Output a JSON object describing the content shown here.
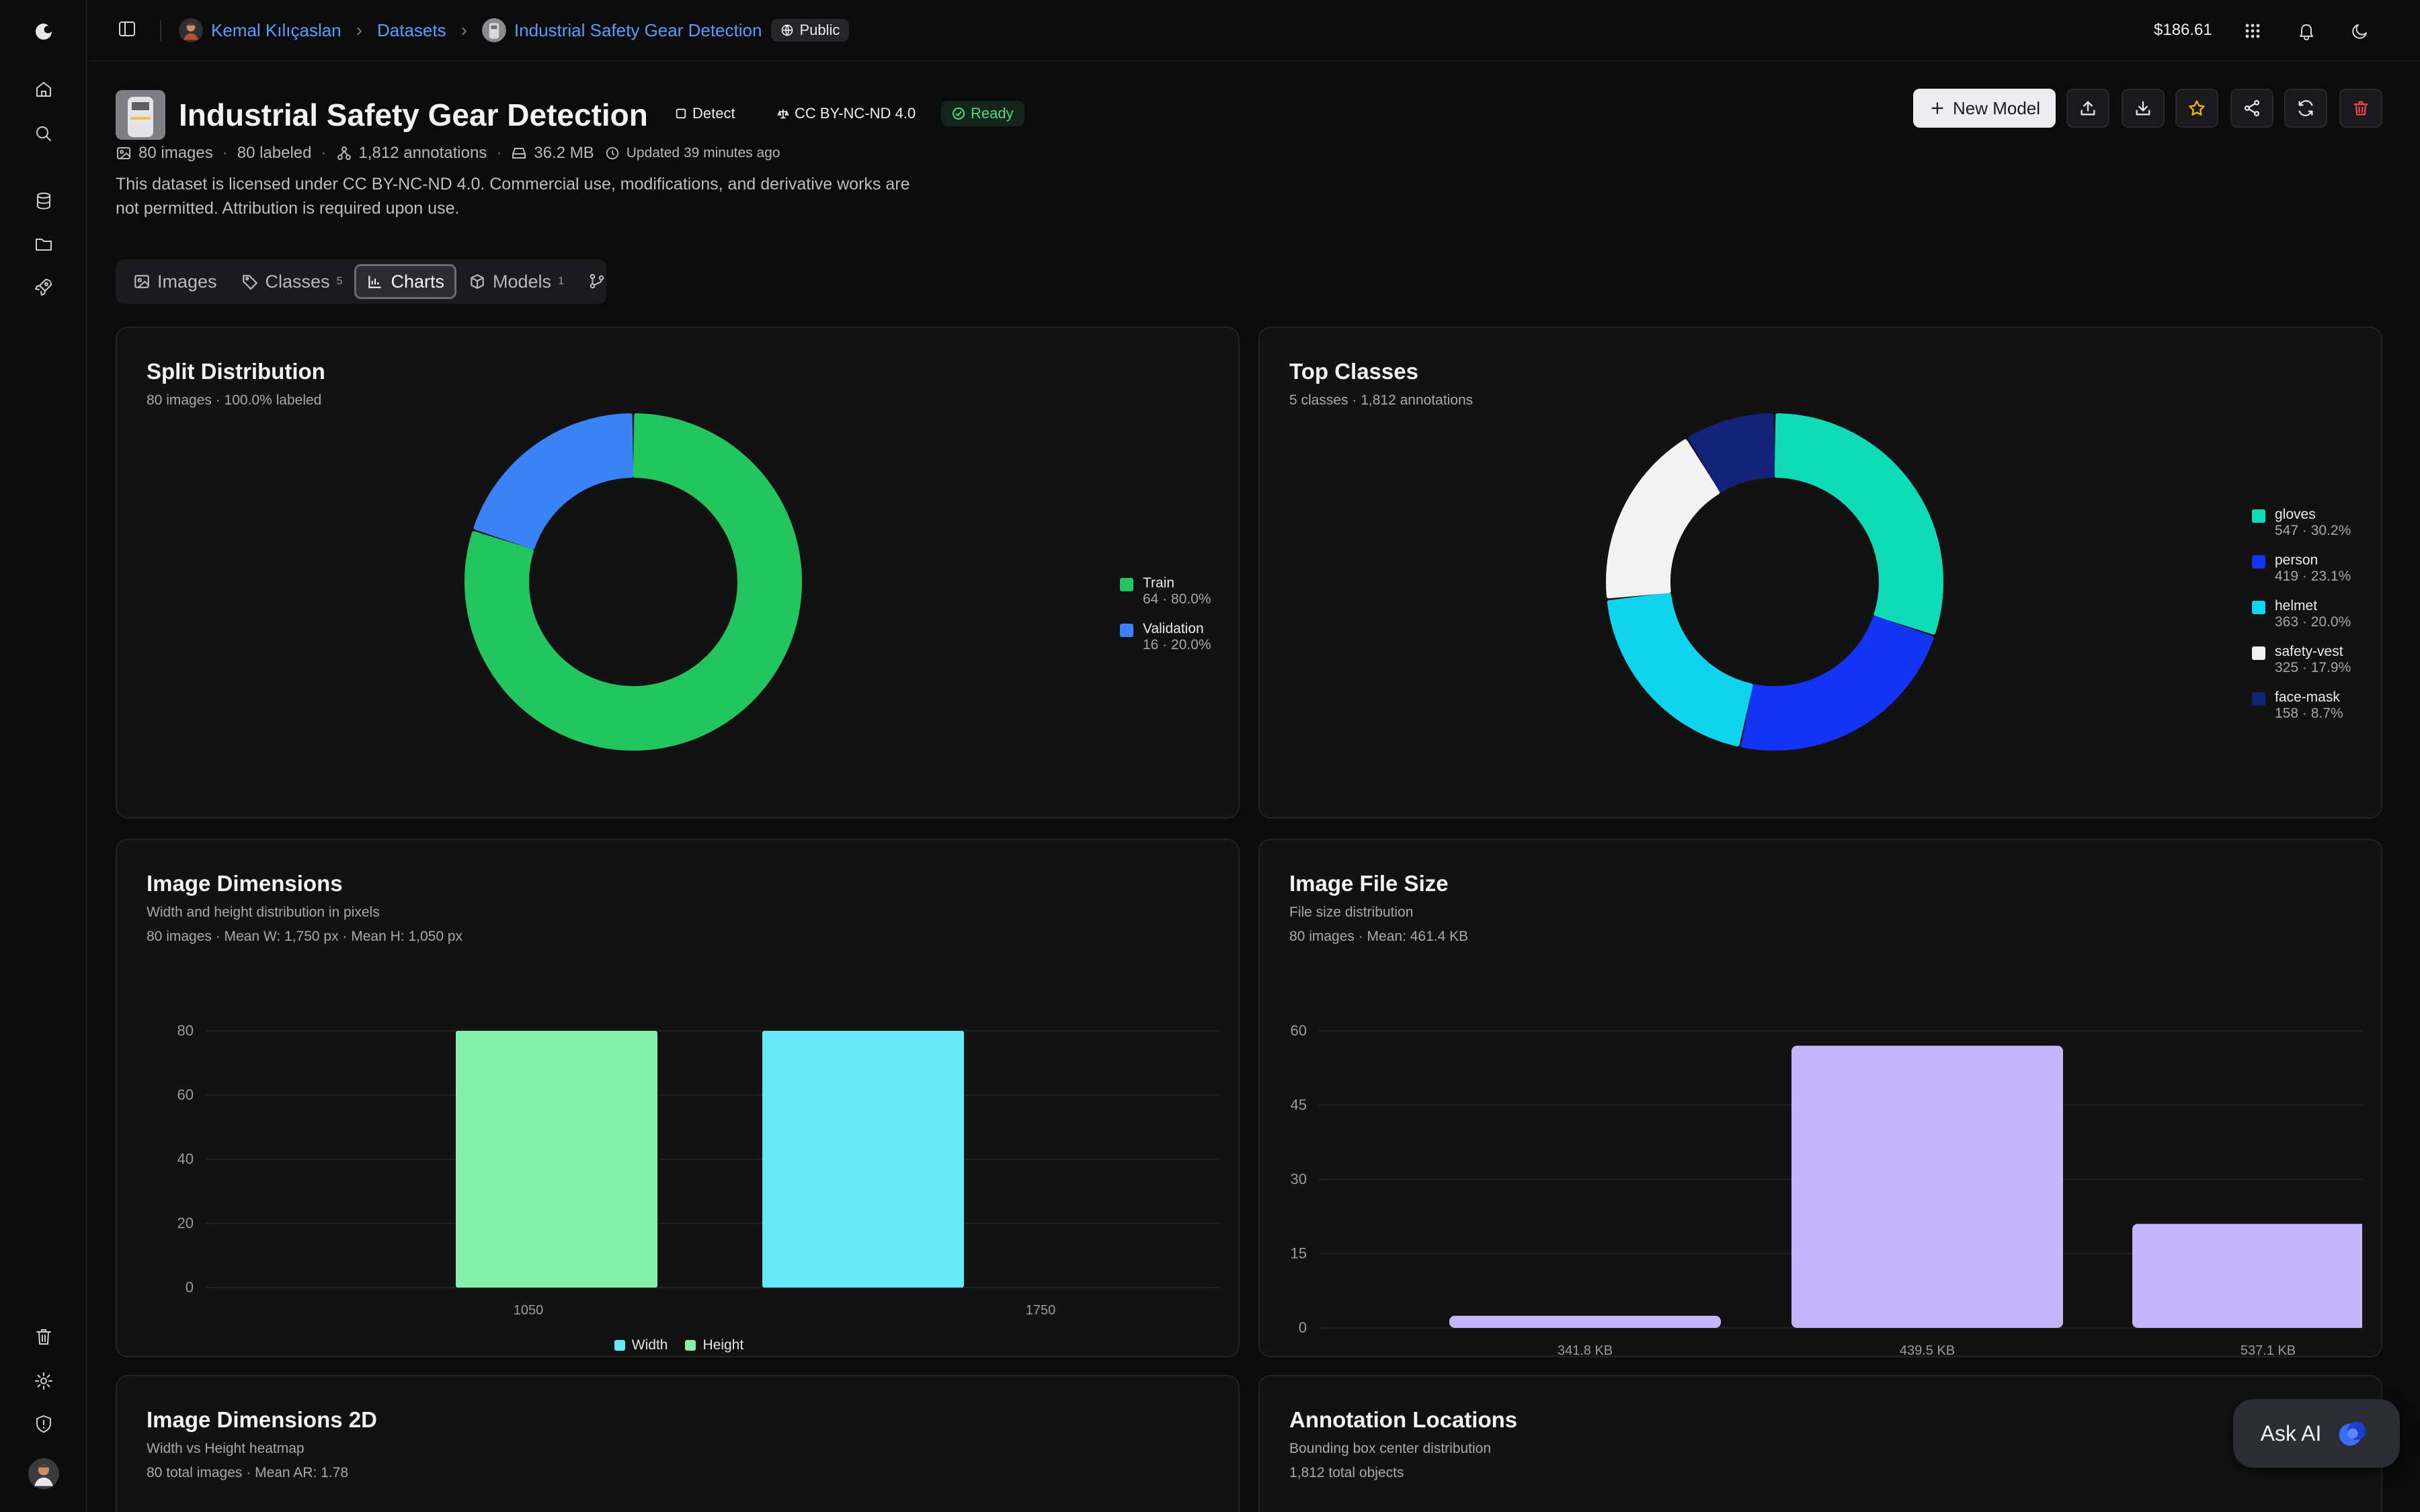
{
  "sidebar": {
    "icons": [
      "logo-icon",
      "home-icon",
      "search-icon",
      "database-icon",
      "folder-icon",
      "rocket-icon",
      "trash-icon",
      "gear-icon",
      "shield-icon"
    ]
  },
  "topbar": {
    "user": "Kemal Kılıçaslan",
    "section": "Datasets",
    "dataset": "Industrial Safety Gear Detection",
    "visibility": "Public",
    "balance": "$186.61"
  },
  "header": {
    "title": "Industrial Safety Gear Detection",
    "task": "Detect",
    "license": "CC BY-NC-ND 4.0",
    "status": "Ready",
    "images": "80 images",
    "labeled": "80 labeled",
    "annotations": "1,812 annotations",
    "size": "36.2 MB",
    "updated": "Updated 39 minutes ago",
    "description": "This dataset is licensed under CC BY-NC-ND 4.0. Commercial use, modifications, and derivative works are not permitted. Attribution is required upon use.",
    "new_model_label": "New Model"
  },
  "tabs": [
    {
      "label": "Images",
      "count": ""
    },
    {
      "label": "Classes",
      "count": "5"
    },
    {
      "label": "Charts",
      "count": ""
    },
    {
      "label": "Models",
      "count": "1"
    }
  ],
  "cards": {
    "split": {
      "title": "Split Distribution",
      "sub": "80 images · 100.0% labeled"
    },
    "top": {
      "title": "Top Classes",
      "sub": "5 classes · 1,812 annotations"
    },
    "dims": {
      "title": "Image Dimensions",
      "sub1": "Width and height distribution in pixels",
      "sub2": "80 images · Mean W: 1,750 px · Mean H: 1,050 px"
    },
    "filesize": {
      "title": "Image File Size",
      "sub1": "File size distribution",
      "sub2": "80 images · Mean: 461.4 KB"
    },
    "dims2d": {
      "title": "Image Dimensions 2D",
      "sub1": "Width vs Height heatmap",
      "sub2": "80 total images · Mean AR: 1.78"
    },
    "annloc": {
      "title": "Annotation Locations",
      "sub1": "Bounding box center distribution",
      "sub2": "1,812 total objects"
    }
  },
  "ask_ai": "Ask AI",
  "colors": {
    "accent": "#5b9cff",
    "ready": "#22c55e"
  },
  "chart_data": [
    {
      "type": "pie",
      "title": "Split Distribution",
      "categories": [
        "Train",
        "Validation"
      ],
      "values": [
        64,
        16
      ],
      "labels": [
        "64 · 80.0%",
        "16 · 20.0%"
      ],
      "colors": [
        "#22c55e",
        "#3b82f6"
      ],
      "legend": "right"
    },
    {
      "type": "pie",
      "title": "Top Classes",
      "categories": [
        "gloves",
        "person",
        "helmet",
        "safety-vest",
        "face-mask"
      ],
      "values": [
        547,
        419,
        363,
        325,
        158
      ],
      "labels": [
        "547 · 30.2%",
        "419 · 23.1%",
        "363 · 20.0%",
        "325 · 17.9%",
        "158 · 8.7%"
      ],
      "colors": [
        "#10dbb7",
        "#1433f5",
        "#10d4ee",
        "#f2f2f2",
        "#14237a"
      ],
      "legend": "right"
    },
    {
      "type": "bar",
      "title": "Image Dimensions",
      "categories": [
        "1050",
        "1750"
      ],
      "series": [
        {
          "name": "Height",
          "color": "#86efac",
          "values": [
            80,
            0
          ]
        },
        {
          "name": "Width",
          "color": "#67e8f9",
          "values": [
            0,
            80
          ]
        }
      ],
      "legend_order": [
        "Width",
        "Height"
      ],
      "yticks": [
        0,
        20,
        40,
        60,
        80
      ],
      "ylim": [
        0,
        80
      ],
      "legend": "bottom"
    },
    {
      "type": "bar",
      "title": "Image File Size",
      "categories": [
        "341.8 KB",
        "439.5 KB",
        "537.1 KB"
      ],
      "values": [
        2,
        57,
        21
      ],
      "color": "#c4b5fd",
      "yticks": [
        0,
        15,
        30,
        45,
        60
      ],
      "ylim": [
        0,
        60
      ]
    }
  ]
}
